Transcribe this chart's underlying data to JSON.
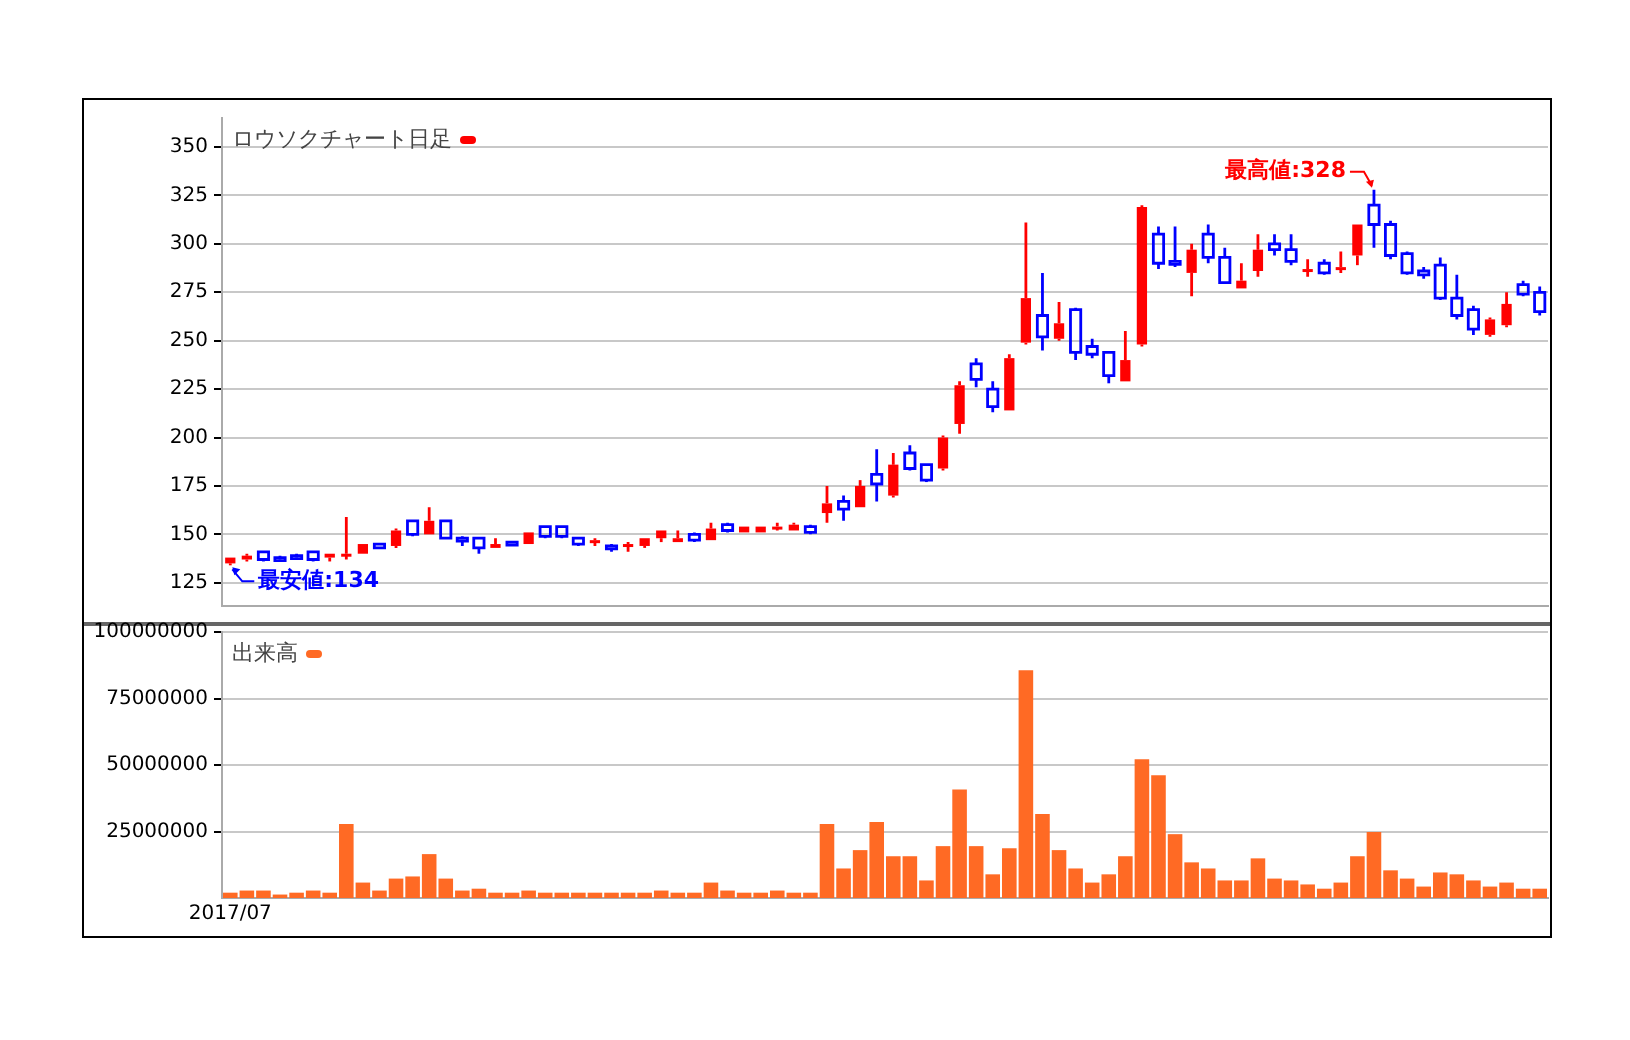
{
  "chart_data": [
    {
      "type": "candlestick",
      "categories": [
        null,
        null,
        null,
        null,
        null,
        null,
        null,
        null,
        null,
        null,
        null,
        null,
        null,
        null,
        null,
        null,
        null,
        null,
        null,
        null,
        null,
        null,
        null,
        null,
        null,
        null,
        null,
        null,
        null,
        null,
        null,
        null,
        null,
        null,
        null,
        null,
        null,
        null,
        null,
        null,
        null,
        null,
        null,
        null,
        null,
        null,
        null,
        null,
        null,
        null,
        null,
        null,
        null,
        null,
        null,
        null,
        null,
        null,
        null,
        null,
        null,
        null,
        null,
        null,
        null,
        null,
        null,
        null,
        null,
        null,
        null,
        null,
        null,
        null,
        null,
        null,
        null,
        null,
        null,
        null
      ],
      "series": [
        {
          "name": "ロウソクチャート日足",
          "color": "#ff0000",
          "ohlc": [
            [
              135,
              138,
              134,
              138
            ],
            [
              137,
              140,
              136,
              139
            ],
            [
              141,
              141,
              136,
              137
            ],
            [
              138,
              139,
              136,
              137
            ],
            [
              139,
              140,
              137,
              138
            ],
            [
              141,
              141,
              136,
              137
            ],
            [
              138,
              140,
              136,
              140
            ],
            [
              139,
              159,
              137,
              140
            ],
            [
              140,
              145,
              140,
              145
            ],
            [
              145,
              145,
              143,
              143
            ],
            [
              144,
              153,
              143,
              152
            ],
            [
              157,
              157,
              149,
              150
            ],
            [
              150,
              164,
              150,
              157
            ],
            [
              157,
              157,
              148,
              148
            ],
            [
              148,
              149,
              144,
              147
            ],
            [
              148,
              148,
              140,
              143
            ],
            [
              143,
              148,
              143,
              145
            ],
            [
              146,
              146,
              144,
              145
            ],
            [
              145,
              151,
              145,
              151
            ],
            [
              154,
              154,
              148,
              149
            ],
            [
              154,
              154,
              148,
              149
            ],
            [
              148,
              148,
              144,
              145
            ],
            [
              146,
              148,
              144,
              147
            ],
            [
              144,
              145,
              141,
              143
            ],
            [
              144,
              146,
              141,
              145
            ],
            [
              144,
              148,
              143,
              148
            ],
            [
              148,
              152,
              146,
              152
            ],
            [
              146,
              152,
              146,
              148
            ],
            [
              150,
              151,
              146,
              147
            ],
            [
              147,
              156,
              147,
              153
            ],
            [
              155,
              156,
              151,
              152
            ],
            [
              151,
              154,
              151,
              154
            ],
            [
              151,
              154,
              151,
              154
            ],
            [
              153,
              156,
              152,
              154
            ],
            [
              152,
              156,
              152,
              155
            ],
            [
              154,
              155,
              150,
              151
            ],
            [
              161,
              175,
              156,
              166
            ],
            [
              167,
              170,
              157,
              163
            ],
            [
              164,
              178,
              164,
              175
            ],
            [
              181,
              194,
              167,
              176
            ],
            [
              170,
              192,
              169,
              186
            ],
            [
              192,
              196,
              183,
              184
            ],
            [
              186,
              186,
              177,
              178
            ],
            [
              184,
              201,
              183,
              200
            ],
            [
              207,
              229,
              202,
              227
            ],
            [
              238,
              241,
              226,
              230
            ],
            [
              225,
              229,
              213,
              216
            ],
            [
              214,
              243,
              214,
              241
            ],
            [
              249,
              311,
              248,
              272
            ],
            [
              263,
              285,
              245,
              252
            ],
            [
              251,
              270,
              250,
              259
            ],
            [
              266,
              267,
              240,
              244
            ],
            [
              247,
              251,
              241,
              243
            ],
            [
              244,
              244,
              228,
              232
            ],
            [
              229,
              255,
              229,
              240
            ],
            [
              248,
              320,
              247,
              319
            ],
            [
              305,
              309,
              287,
              290
            ],
            [
              291,
              309,
              288,
              290
            ],
            [
              285,
              300,
              273,
              297
            ],
            [
              305,
              310,
              290,
              293
            ],
            [
              293,
              298,
              280,
              280
            ],
            [
              277,
              290,
              277,
              281
            ],
            [
              286,
              305,
              283,
              297
            ],
            [
              300,
              305,
              294,
              297
            ],
            [
              297,
              305,
              289,
              291
            ],
            [
              286,
              292,
              283,
              287
            ],
            [
              290,
              292,
              284,
              285
            ],
            [
              287,
              296,
              285,
              288
            ],
            [
              294,
              310,
              289,
              310
            ],
            [
              320,
              328,
              298,
              310
            ],
            [
              310,
              312,
              292,
              294
            ],
            [
              295,
              296,
              284,
              285
            ],
            [
              286,
              288,
              282,
              284
            ],
            [
              289,
              293,
              271,
              272
            ],
            [
              272,
              284,
              261,
              263
            ],
            [
              266,
              268,
              253,
              256
            ],
            [
              253,
              262,
              252,
              261
            ],
            [
              258,
              275,
              257,
              269
            ],
            [
              279,
              281,
              273,
              274
            ],
            [
              275,
              278,
              263,
              265
            ]
          ],
          "colors": [
            "#ff0000",
            "#ff0000",
            "#0000ff",
            "#0000ff",
            "#0000ff",
            "#0000ff",
            "#ff0000",
            "#ff0000",
            "#ff0000",
            "#0000ff",
            "#ff0000",
            "#0000ff",
            "#ff0000",
            "#0000ff",
            "#0000ff",
            "#0000ff",
            "#ff0000",
            "#0000ff",
            "#ff0000",
            "#0000ff",
            "#0000ff",
            "#0000ff",
            "#ff0000",
            "#0000ff",
            "#ff0000",
            "#ff0000",
            "#ff0000",
            "#ff0000",
            "#0000ff",
            "#ff0000",
            "#0000ff",
            "#ff0000",
            "#ff0000",
            "#ff0000",
            "#ff0000",
            "#0000ff",
            "#ff0000",
            "#0000ff",
            "#ff0000",
            "#0000ff",
            "#ff0000",
            "#0000ff",
            "#0000ff",
            "#ff0000",
            "#ff0000",
            "#0000ff",
            "#0000ff",
            "#ff0000",
            "#ff0000",
            "#0000ff",
            "#ff0000",
            "#0000ff",
            "#0000ff",
            "#0000ff",
            "#ff0000",
            "#ff0000",
            "#0000ff",
            "#0000ff",
            "#ff0000",
            "#0000ff",
            "#0000ff",
            "#ff0000",
            "#ff0000",
            "#0000ff",
            "#0000ff",
            "#ff0000",
            "#0000ff",
            "#ff0000",
            "#ff0000",
            "#0000ff",
            "#0000ff",
            "#0000ff",
            "#0000ff",
            "#0000ff",
            "#0000ff",
            "#0000ff",
            "#ff0000",
            "#ff0000",
            "#0000ff",
            "#0000ff"
          ]
        }
      ],
      "ylim": [
        113,
        365
      ],
      "yticks": [
        125,
        150,
        175,
        200,
        225,
        250,
        275,
        300,
        325,
        350
      ],
      "grid": "y",
      "legend": "top left",
      "tick_labels": "y",
      "annotations": [
        {
          "text": "最安値:134",
          "y": 134
        },
        "最高値:328"
      ]
    },
    {
      "type": "bar",
      "categories": [
        "2017/07",
        null,
        null,
        null,
        null,
        null,
        null,
        null,
        null,
        null,
        null,
        null,
        null,
        null,
        null,
        null,
        null,
        null,
        null,
        null,
        null,
        null,
        null,
        null,
        null,
        null,
        null,
        null,
        null,
        null,
        null,
        null,
        null,
        null,
        null,
        null,
        null,
        null,
        null,
        null,
        null,
        null,
        null,
        null,
        null,
        null,
        null,
        null,
        null,
        null,
        null,
        null,
        null,
        null,
        null,
        null,
        null,
        null,
        null,
        null,
        null,
        null,
        null,
        null,
        null,
        null,
        null,
        null,
        null,
        null,
        null,
        null,
        null,
        null,
        null,
        null,
        null,
        null,
        null,
        null
      ],
      "series": [
        {
          "name": "出来高",
          "color": "#ff6a24",
          "values": [
            2000000,
            2800000,
            2800000,
            1300000,
            2000000,
            2800000,
            2000000,
            27800000,
            5800000,
            2800000,
            7300000,
            8100000,
            16500000,
            7300000,
            2800000,
            3500000,
            2000000,
            2000000,
            2800000,
            2000000,
            2000000,
            2000000,
            2000000,
            2000000,
            2000000,
            2000000,
            2800000,
            2000000,
            2000000,
            5800000,
            2800000,
            2000000,
            2000000,
            2800000,
            2000000,
            2000000,
            27800000,
            11100000,
            18000000,
            28600000,
            15700000,
            15700000,
            6600000,
            19500000,
            40800000,
            19500000,
            8900000,
            18700000,
            85600000,
            31600000,
            18000000,
            11100000,
            5800000,
            8900000,
            15700000,
            52200000,
            46100000,
            24000000,
            13400000,
            11100000,
            6600000,
            6600000,
            14900000,
            7300000,
            6600000,
            5100000,
            3500000,
            5800000,
            15700000,
            24800000,
            10400000,
            7300000,
            4300000,
            9600000,
            8900000,
            6600000,
            4300000,
            5800000,
            3500000,
            3500000
          ]
        }
      ],
      "ylim": [
        0,
        100000000
      ],
      "yticks": [
        25000000,
        50000000,
        75000000,
        100000000
      ],
      "grid": "y",
      "legend": "top left"
    }
  ]
}
